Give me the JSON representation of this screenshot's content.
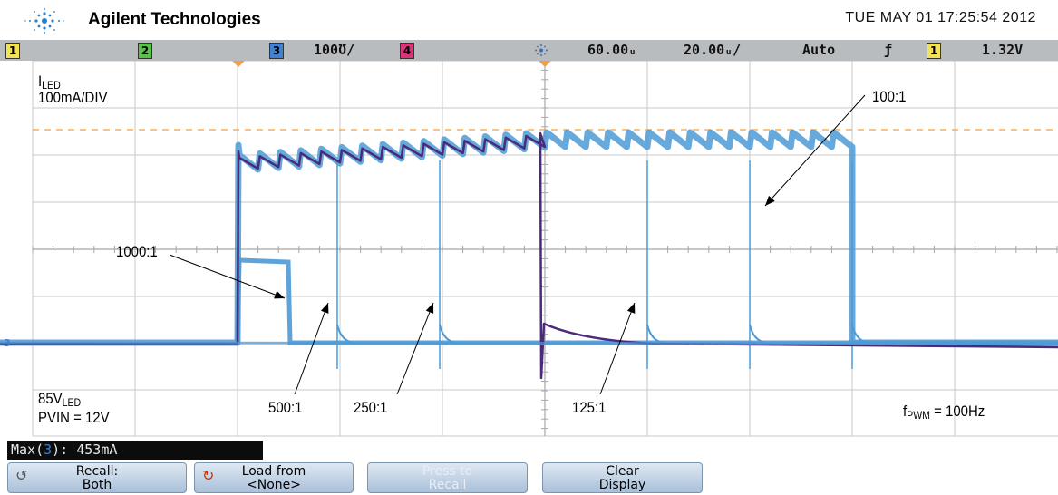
{
  "header": {
    "brand": "Agilent Technologies",
    "datetime": "TUE MAY 01 17:25:54 2012"
  },
  "status_bar": {
    "channel1": "1",
    "channel2": "2",
    "channel3": "3",
    "channel3_scale": "100Ʊ/",
    "channel4": "4",
    "timebase_delay": "60.00ᵤ",
    "timebase_scale": "20.00ᵤ/",
    "trigger_mode": "Auto",
    "trigger_slope": "ƒ",
    "trigger_channel": "1",
    "trigger_level": "1.32V"
  },
  "plot": {
    "ground_marker": "3",
    "colors": {
      "trace_light": "#4d9ad6",
      "trace_dark": "#4a2a7a",
      "trigger_line": "#f0a040",
      "grid": "#c8c8c8"
    },
    "annotations": {
      "iled_main": "I",
      "iled_sub": "LED",
      "iled_scale": "100mA/DIV",
      "r100": "100:1",
      "r1000": "1000:1",
      "r500": "500:1",
      "r250": "250:1",
      "r125": "125:1",
      "vled_main": "85V",
      "vled_sub": "LED",
      "pvin": "PVIN = 12V",
      "fpwm_main": "f",
      "fpwm_sub": "PWM",
      "fpwm_value": " = 100Hz"
    }
  },
  "measurement": {
    "prefix": "Max(",
    "channel": "3",
    "suffix": "): 453mA"
  },
  "softkeys": {
    "recall_line1": "Recall:",
    "recall_line2": "Both",
    "load_line1": "Load from",
    "load_line2": "<None>",
    "press_line1": "Press to",
    "press_line2": "Recall",
    "clear_line1": "Clear",
    "clear_line2": "Display"
  }
}
